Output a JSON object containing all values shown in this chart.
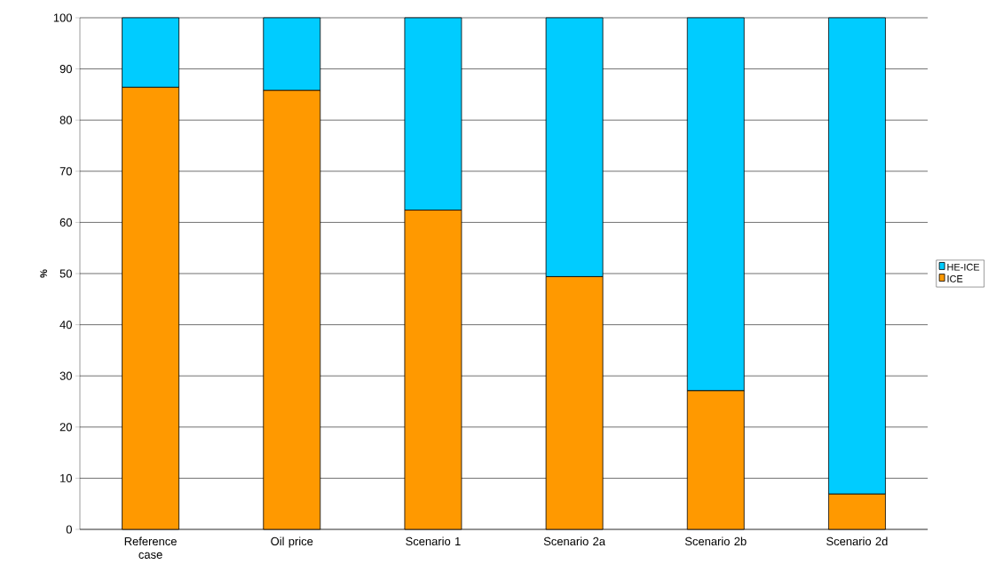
{
  "chart_data": {
    "type": "bar",
    "stacked": true,
    "ylabel": "%",
    "categories": [
      "Reference case",
      "Oil price",
      "Scenario 1",
      "Scenario 2a",
      "Scenario 2b",
      "Scenario 2d"
    ],
    "series": [
      {
        "name": "ICE",
        "color": "#ff9900",
        "values": [
          86.4,
          85.8,
          62.4,
          49.4,
          27.1,
          6.9
        ]
      },
      {
        "name": "HE-ICE",
        "color": "#00ccff",
        "values": [
          13.6,
          14.2,
          37.6,
          50.6,
          72.9,
          93.1
        ]
      }
    ],
    "ylim": [
      0,
      100
    ],
    "yticks": [
      0,
      10,
      20,
      30,
      40,
      50,
      60,
      70,
      80,
      90,
      100
    ],
    "grid": "y",
    "legend": "right"
  }
}
